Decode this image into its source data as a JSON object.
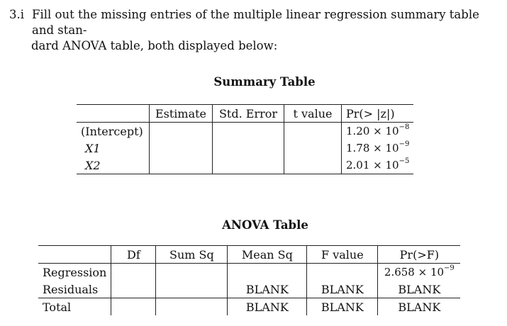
{
  "question": {
    "number": "3.i",
    "line1": "Fill out the missing entries of the multiple linear regression summary table and stan-",
    "line2": "dard ANOVA table, both displayed below:"
  },
  "summary_table": {
    "title": "Summary Table",
    "headers": [
      "",
      "Estimate",
      "Std. Error",
      "t value",
      "Pr(> |z|)"
    ],
    "rows": [
      {
        "label": "(Intercept)",
        "pval_mantissa": "1.20 × 10",
        "pval_exp": "−8"
      },
      {
        "label": "X1",
        "pval_mantissa": "1.78 × 10",
        "pval_exp": "−9"
      },
      {
        "label": "X2",
        "pval_mantissa": "2.01 × 10",
        "pval_exp": "−5"
      }
    ]
  },
  "anova_table": {
    "title": "ANOVA Table",
    "headers": [
      "",
      "Df",
      "Sum Sq",
      "Mean Sq",
      "F value",
      "Pr(>F)"
    ],
    "rows": [
      {
        "label": "Regression",
        "df": "",
        "sumsq": "",
        "meansq": "",
        "fvalue": "",
        "pval_mantissa": "2.658 × 10",
        "pval_exp": "−9"
      },
      {
        "label": "Residuals",
        "df": "",
        "sumsq": "",
        "meansq": "BLANK",
        "fvalue": "BLANK",
        "pval": "BLANK"
      },
      {
        "label": "Total",
        "df": "",
        "sumsq": "",
        "meansq": "BLANK",
        "fvalue": "BLANK",
        "pval": "BLANK"
      }
    ]
  }
}
